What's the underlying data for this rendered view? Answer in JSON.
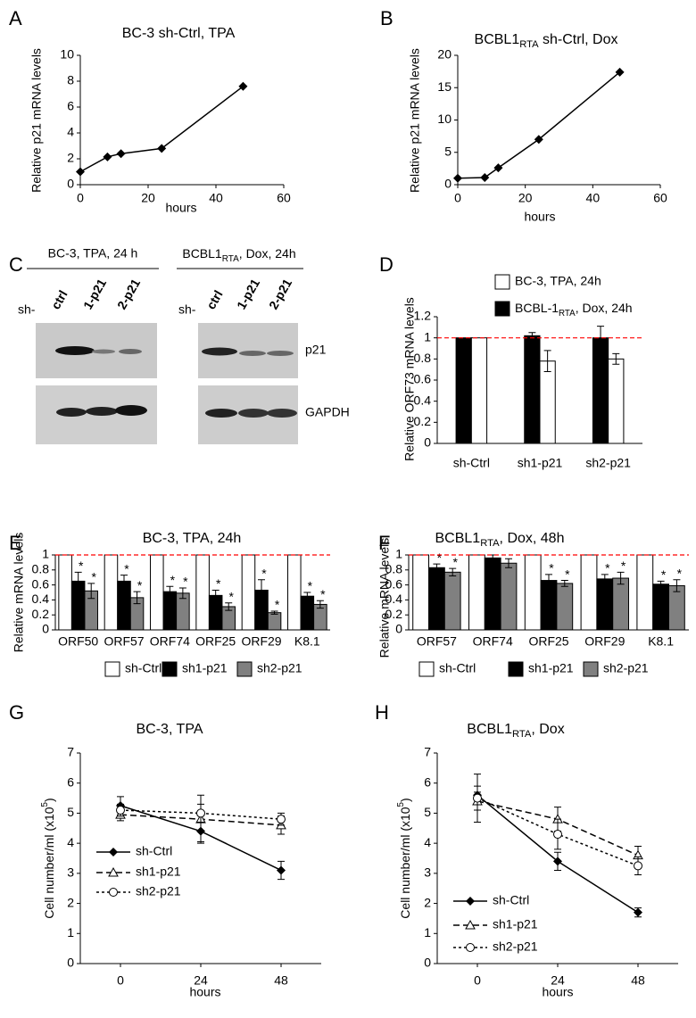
{
  "chart_data": [
    {
      "type": "line",
      "panel": "A",
      "title": "BC-3 sh-Ctrl, TPA",
      "x_label": "hours",
      "y_label": "Relative p21 mRNA levels",
      "x": [
        0,
        8,
        12,
        24,
        48
      ],
      "values": [
        1,
        2.15,
        2.4,
        2.8,
        7.6
      ],
      "color": "#000000",
      "marker": "diamond",
      "line_style": "solid",
      "xlim": [
        0,
        60
      ],
      "xticks": [
        0,
        20,
        40,
        60
      ],
      "ylim": [
        0,
        10
      ],
      "yticks": [
        0,
        2,
        4,
        6,
        8,
        10
      ]
    },
    {
      "type": "line",
      "panel": "B",
      "title": [
        {
          "text": "BCBL1"
        },
        {
          "text": "RTA",
          "sub": true
        },
        {
          "text": " sh-Ctrl, Dox"
        }
      ],
      "x_label": "hours",
      "y_label": "Relative p21 mRNA levels",
      "x": [
        0,
        8,
        12,
        24,
        48
      ],
      "values": [
        1,
        1.1,
        2.6,
        7,
        17.4
      ],
      "color": "#000000",
      "marker": "diamond",
      "line_style": "solid",
      "xlim": [
        0,
        60
      ],
      "xticks": [
        0,
        20,
        40,
        60
      ],
      "ylim": [
        0,
        20
      ],
      "yticks": [
        0,
        5,
        10,
        15,
        20
      ]
    },
    {
      "type": "bar",
      "panel": "D",
      "y_label": "Relative ORF73 mRNA levels",
      "categories": [
        "sh-Ctrl",
        "sh1-p21",
        "sh2-p21"
      ],
      "series": [
        {
          "name": [
            {
              "text": "BCBL-1"
            },
            {
              "text": "RTA",
              "sub": true
            },
            {
              "text": ", Dox, 24h"
            }
          ],
          "color": "#000000",
          "values": [
            1,
            1.02,
            1
          ],
          "errors": [
            null,
            0.03,
            0.11
          ]
        },
        {
          "name": "BC-3, TPA, 24h",
          "color": "#ffffff",
          "values": [
            1,
            0.78,
            0.8
          ],
          "errors": [
            null,
            0.1,
            0.05
          ]
        }
      ],
      "ylim": [
        0,
        1.2
      ],
      "yticks": [
        0,
        0.2,
        0.4,
        0.6,
        0.8,
        1,
        1.2
      ],
      "ref_line": 1,
      "ref_color": "#ff0000"
    },
    {
      "type": "bar",
      "panel": "E",
      "title": "BC-3, TPA, 24h",
      "y_label": "Relative mRNA levels",
      "categories": [
        "ORF50",
        "ORF57",
        "ORF74",
        "ORF25",
        "ORF29",
        "K8.1"
      ],
      "series": [
        {
          "name": "sh-Ctrl",
          "color": "#ffffff",
          "values": [
            1,
            1,
            1,
            1,
            1,
            1
          ]
        },
        {
          "name": "sh1-p21",
          "color": "#000000",
          "values": [
            0.65,
            0.65,
            0.51,
            0.46,
            0.53,
            0.45
          ],
          "errors": [
            0.12,
            0.08,
            0.07,
            0.07,
            0.14,
            0.05
          ],
          "significance": [
            "*",
            "*",
            "*",
            "*",
            "*",
            "*"
          ]
        },
        {
          "name": "sh2-p21",
          "color": "#808080",
          "values": [
            0.52,
            0.43,
            0.49,
            0.31,
            0.23,
            0.34
          ],
          "errors": [
            0.1,
            0.08,
            0.07,
            0.05,
            0.02,
            0.05
          ],
          "significance": [
            "*",
            "*",
            "*",
            "*",
            "*",
            "*"
          ]
        }
      ],
      "ylim": [
        0,
        1
      ],
      "yticks": [
        0,
        0.2,
        0.4,
        0.6,
        0.8,
        1
      ],
      "ref_line": 1,
      "ref_color": "#ff0000"
    },
    {
      "type": "bar",
      "panel": "F",
      "title": [
        {
          "text": "BCBL1"
        },
        {
          "text": "RTA",
          "sub": true
        },
        {
          "text": ", Dox,  48h"
        }
      ],
      "y_label": "Relative mRNA levels",
      "categories": [
        "ORF57",
        "ORF74",
        "ORF25",
        "ORF29",
        "K8.1"
      ],
      "series": [
        {
          "name": "sh-Ctrl",
          "color": "#ffffff",
          "values": [
            1,
            1,
            1,
            1,
            1
          ]
        },
        {
          "name": "sh1-p21",
          "color": "#000000",
          "values": [
            0.83,
            0.96,
            0.66,
            0.68,
            0.61
          ],
          "errors": [
            0.05,
            0.04,
            0.08,
            0.06,
            0.04
          ],
          "significance": [
            "*",
            null,
            "*",
            "*",
            "*"
          ]
        },
        {
          "name": "sh2-p21",
          "color": "#808080",
          "values": [
            0.77,
            0.89,
            0.62,
            0.69,
            0.59
          ],
          "errors": [
            0.05,
            0.06,
            0.04,
            0.08,
            0.08
          ],
          "significance": [
            "*",
            null,
            "*",
            "*",
            "*"
          ]
        }
      ],
      "ylim": [
        0,
        1
      ],
      "yticks": [
        0,
        0.2,
        0.4,
        0.6,
        0.8,
        1
      ],
      "ref_line": 1,
      "ref_color": "#ff0000"
    },
    {
      "type": "line",
      "panel": "G",
      "title": "BC-3, TPA",
      "x_label": "hours",
      "y_label": [
        {
          "text": "Cell number/ml (x10"
        },
        {
          "text": "5",
          "sup": true
        },
        {
          "text": ")"
        }
      ],
      "categories": [
        "0",
        "24",
        "48"
      ],
      "series": [
        {
          "name": "sh-Ctrl",
          "color": "#000000",
          "marker": "diamond",
          "line_style": "solid",
          "values": [
            5.25,
            4.4,
            3.1
          ],
          "errors": [
            0.3,
            0.35,
            0.3
          ]
        },
        {
          "name": "sh1-p21",
          "color": "#000000",
          "marker": "triangle",
          "line_style": "dashed",
          "values": [
            4.95,
            4.8,
            4.6
          ],
          "errors": [
            0.2,
            0.8,
            0.3
          ]
        },
        {
          "name": "sh2-p21",
          "color": "#000000",
          "marker": "circle",
          "line_style": "dotted",
          "values": [
            5.1,
            5,
            4.8
          ],
          "errors": [
            0.2,
            0.3,
            0.2
          ]
        }
      ],
      "ylim": [
        0,
        7
      ],
      "yticks": [
        0,
        1,
        2,
        3,
        4,
        5,
        6,
        7
      ]
    },
    {
      "type": "line",
      "panel": "H",
      "title": [
        {
          "text": "BCBL1"
        },
        {
          "text": "RTA",
          "sub": true
        },
        {
          "text": ", Dox"
        }
      ],
      "x_label": "hours",
      "y_label": [
        {
          "text": "Cell number/ml (x10"
        },
        {
          "text": "5",
          "sup": true
        },
        {
          "text": ")"
        }
      ],
      "categories": [
        "0",
        "24",
        "48"
      ],
      "series": [
        {
          "name": "sh-Ctrl",
          "color": "#000000",
          "marker": "diamond",
          "line_style": "solid",
          "values": [
            5.6,
            3.4,
            1.7
          ],
          "errors": [
            0.3,
            0.3,
            0.15
          ]
        },
        {
          "name": "sh1-p21",
          "color": "#000000",
          "marker": "triangle",
          "line_style": "dashed",
          "values": [
            5.4,
            4.8,
            3.6
          ],
          "errors": [
            0.3,
            0.4,
            0.3
          ]
        },
        {
          "name": "sh2-p21",
          "color": "#000000",
          "marker": "circle",
          "line_style": "dotted",
          "values": [
            5.5,
            4.3,
            3.25
          ],
          "errors": [
            0.8,
            0.5,
            0.3
          ]
        }
      ],
      "ylim": [
        0,
        7
      ],
      "yticks": [
        0,
        1,
        2,
        3,
        4,
        5,
        6,
        7
      ]
    }
  ],
  "blot": {
    "panel": "C",
    "left": {
      "title": "BC-3, TPA, 24 h",
      "prefix": "sh-",
      "lanes": [
        "ctrl",
        "1-p21",
        "2-p21"
      ]
    },
    "right": {
      "title": [
        {
          "text": "BCBL1"
        },
        {
          "text": "RTA",
          "sub": true
        },
        {
          "text": ", Dox, 24h"
        }
      ],
      "prefix": "sh-",
      "lanes": [
        "ctrl",
        "1-p21",
        "2-p21"
      ]
    },
    "bands": [
      "p21",
      "GAPDH"
    ]
  }
}
